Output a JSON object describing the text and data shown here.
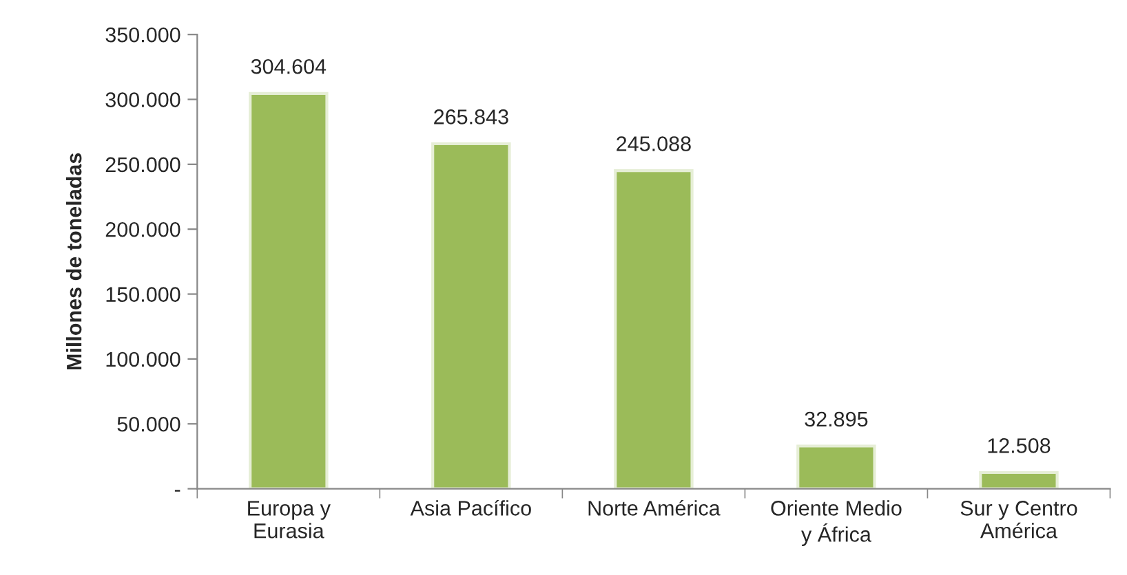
{
  "chart_data": {
    "type": "bar",
    "ylabel": "Millones de toneladas",
    "categories": [
      "Europa y\nEurasia",
      "Asia Pacífico",
      "Norte América",
      "Oriente Medio\ny África",
      "Sur y Centro\nAmérica"
    ],
    "values": [
      304604,
      265843,
      245088,
      32895,
      12508
    ],
    "value_labels": [
      "304.604",
      "265.843",
      "245.088",
      "32.895",
      "12.508"
    ],
    "color": "#9bbb59",
    "ylim": [
      0,
      350000
    ],
    "yticks": [
      {
        "value": 0,
        "label": "-"
      },
      {
        "value": 50000,
        "label": "50.000"
      },
      {
        "value": 100000,
        "label": "100.000"
      },
      {
        "value": 150000,
        "label": "150.000"
      },
      {
        "value": 200000,
        "label": "200.000"
      },
      {
        "value": 250000,
        "label": "250.000"
      },
      {
        "value": 300000,
        "label": "300.000"
      },
      {
        "value": 350000,
        "label": "350.000"
      }
    ],
    "grid": false,
    "legend": false
  }
}
